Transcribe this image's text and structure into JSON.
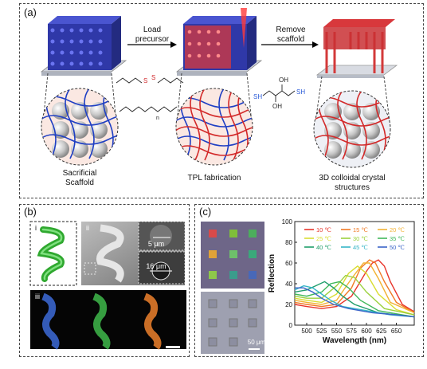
{
  "panel_a": {
    "label": "(a)",
    "step1": [
      "Load",
      "precursor"
    ],
    "step2": [
      "Remove",
      "scaffold"
    ],
    "cap1": [
      "Sacrificial",
      "Scaffold"
    ],
    "cap2": "TPL fabrication",
    "cap3": [
      "3D colloidal crystal",
      "structures"
    ],
    "chem_oh": "OH",
    "chem_sh": "SH",
    "chem_s": "S",
    "chem_n": "n"
  },
  "panel_b": {
    "label": "(b)",
    "sub_i": "i",
    "sub_ii": "ii",
    "sub_iii": "iii",
    "scale1": "5 μm",
    "scale2": "16 μm"
  },
  "panel_c": {
    "label": "(c)",
    "scale": "50 μm"
  },
  "chart_data": {
    "type": "line",
    "xlabel": "Wavelength (nm)",
    "ylabel": "Reflection",
    "xlim": [
      480,
      680
    ],
    "ylim": [
      0,
      100
    ],
    "xticks": [
      500,
      525,
      550,
      575,
      600,
      625,
      650
    ],
    "yticks": [
      0,
      20,
      40,
      60,
      80,
      100
    ],
    "legend_position": "top-right",
    "series": [
      {
        "name": "10 ℃",
        "color": "#e8352b",
        "x": [
          480,
          500,
          525,
          550,
          575,
          600,
          610,
          620,
          630,
          640,
          660,
          680
        ],
        "y": [
          20,
          18,
          16,
          18,
          28,
          52,
          60,
          63,
          57,
          42,
          20,
          13
        ]
      },
      {
        "name": "15 ℃",
        "color": "#f07a25",
        "x": [
          480,
          500,
          525,
          550,
          575,
          590,
          605,
          615,
          630,
          650,
          680
        ],
        "y": [
          22,
          20,
          18,
          20,
          36,
          55,
          63,
          60,
          42,
          22,
          12
        ]
      },
      {
        "name": "20 ℃",
        "color": "#f2b233",
        "x": [
          480,
          500,
          525,
          550,
          575,
          595,
          605,
          620,
          640,
          680
        ],
        "y": [
          24,
          22,
          20,
          24,
          45,
          60,
          60,
          45,
          22,
          12
        ]
      },
      {
        "name": "25 ℃",
        "color": "#d9dd32",
        "x": [
          480,
          500,
          525,
          550,
          570,
          585,
          600,
          620,
          650,
          680
        ],
        "y": [
          26,
          24,
          22,
          30,
          50,
          57,
          50,
          30,
          15,
          10
        ]
      },
      {
        "name": "30 ℃",
        "color": "#9bd13d",
        "x": [
          480,
          500,
          525,
          550,
          565,
          580,
          600,
          630,
          680
        ],
        "y": [
          28,
          26,
          26,
          38,
          48,
          46,
          32,
          16,
          10
        ]
      },
      {
        "name": "35 ℃",
        "color": "#41b85a",
        "x": [
          480,
          500,
          525,
          540,
          555,
          570,
          590,
          620,
          680
        ],
        "y": [
          30,
          28,
          32,
          40,
          42,
          36,
          24,
          14,
          8
        ]
      },
      {
        "name": "40 ℃",
        "color": "#1f9e6b",
        "x": [
          480,
          500,
          515,
          530,
          545,
          560,
          580,
          620,
          680
        ],
        "y": [
          32,
          34,
          38,
          42,
          36,
          28,
          20,
          12,
          8
        ]
      },
      {
        "name": "45 ℃",
        "color": "#35b5c7",
        "x": [
          480,
          495,
          510,
          525,
          540,
          560,
          600,
          640,
          680
        ],
        "y": [
          34,
          38,
          36,
          30,
          24,
          18,
          14,
          10,
          8
        ]
      },
      {
        "name": "50 ℃",
        "color": "#3a64c8",
        "x": [
          480,
          495,
          510,
          525,
          545,
          570,
          610,
          650,
          680
        ],
        "y": [
          36,
          36,
          32,
          26,
          20,
          16,
          12,
          10,
          8
        ]
      }
    ]
  }
}
